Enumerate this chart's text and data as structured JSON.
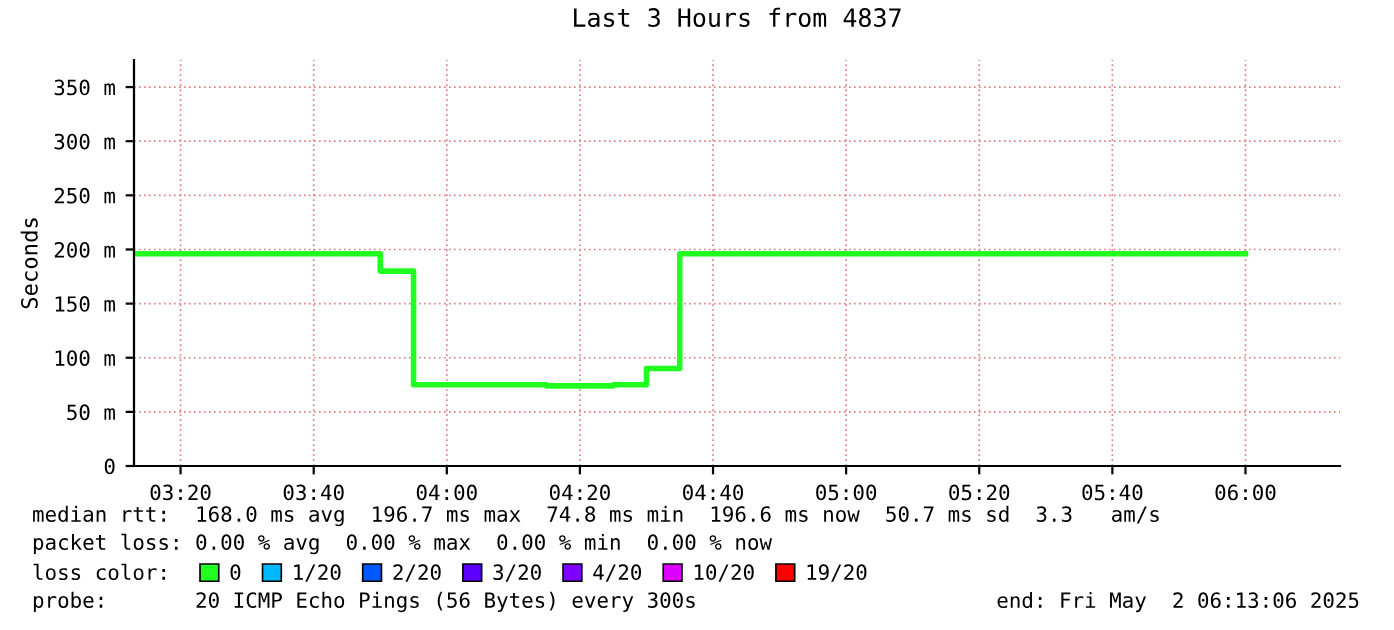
{
  "chart_data": {
    "type": "step",
    "title": "Last 3 Hours from 4837",
    "ylabel": "Seconds",
    "legend_title": "loss color:",
    "x": [
      3.2167,
      3.8333,
      3.9167,
      4.25,
      4.4167,
      4.5,
      4.5833,
      6.0
    ],
    "series": [
      {
        "name": "0",
        "color": "#20ff20",
        "values": [
          196,
          180,
          75,
          74,
          75,
          90,
          196,
          196
        ]
      },
      {
        "name": "1/20",
        "color": "#00b8ff",
        "values": [
          null,
          null,
          null,
          null,
          null,
          null,
          null,
          null
        ]
      },
      {
        "name": "2/20",
        "color": "#0059ff",
        "values": [
          null,
          null,
          null,
          null,
          null,
          null,
          null,
          null
        ]
      },
      {
        "name": "3/20",
        "color": "#5e00ff",
        "values": [
          null,
          null,
          null,
          null,
          null,
          null,
          null,
          null
        ]
      },
      {
        "name": "4/20",
        "color": "#7e00ff",
        "values": [
          null,
          null,
          null,
          null,
          null,
          null,
          null,
          null
        ]
      },
      {
        "name": "10/20",
        "color": "#dd00ff",
        "values": [
          null,
          null,
          null,
          null,
          null,
          null,
          null,
          null
        ]
      },
      {
        "name": "19/20",
        "color": "#ff0000",
        "values": [
          null,
          null,
          null,
          null,
          null,
          null,
          null,
          null
        ]
      }
    ],
    "xlim": [
      3.2167,
      6.2367
    ],
    "xticks": [
      {
        "value": 3.3333,
        "label": "03:20"
      },
      {
        "value": 3.6667,
        "label": "03:40"
      },
      {
        "value": 4.0,
        "label": "04:00"
      },
      {
        "value": 4.3333,
        "label": "04:20"
      },
      {
        "value": 4.6667,
        "label": "04:40"
      },
      {
        "value": 5.0,
        "label": "05:00"
      },
      {
        "value": 5.3333,
        "label": "05:20"
      },
      {
        "value": 5.6667,
        "label": "05:40"
      },
      {
        "value": 6.0,
        "label": "06:00"
      }
    ],
    "ylim": [
      0,
      375
    ],
    "yticks": [
      0,
      {
        "value": 50,
        "label": "50 m"
      },
      {
        "value": 100,
        "label": "100 m"
      },
      {
        "value": 150,
        "label": "150 m"
      },
      {
        "value": 200,
        "label": "200 m"
      },
      {
        "value": 250,
        "label": "250 m"
      },
      {
        "value": 300,
        "label": "300 m"
      },
      {
        "value": 350,
        "label": "350 m"
      }
    ],
    "grid": true,
    "legend": "bottom",
    "annotations": [
      "median rtt:  168.0 ms avg  196.7 ms max  74.8 ms min  196.6 ms now  50.7 ms sd  3.3   am/s",
      "packet loss: 0.00 % avg  0.00 % max  0.00 % min  0.00 % now",
      "probe:       20 ICMP Echo Pings (56 Bytes) every 300s",
      "end: Fri May  2 06:13:06 2025"
    ]
  }
}
